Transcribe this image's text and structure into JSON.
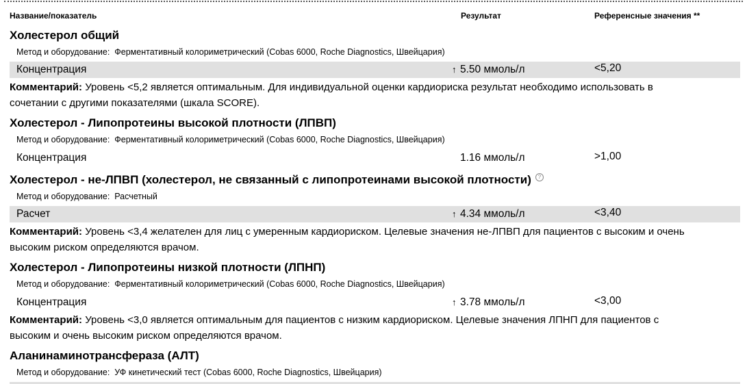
{
  "header": {
    "name": "Название/показатель",
    "result": "Результат",
    "reference": "Референсные значения **"
  },
  "sections": [
    {
      "title": "Холестерол общий",
      "method_label": "Метод и оборудование:",
      "method": "Ферментативный колориметрический (Cobas 6000, Roche Diagnostics, Швейцария)",
      "row": {
        "label": "Концентрация",
        "arrow": "↑",
        "value": "5.50 ммоль/л",
        "reference": "<5,20"
      },
      "comment_label": "Комментарий:",
      "comment": "Уровень <5,2 является оптимальным. Для индивидуальной оценки кардиориска результат необходимо использовать в сочетании с другими показателями (шкала SCORE)."
    },
    {
      "title": "Холестерол - Липопротеины высокой плотности (ЛПВП)",
      "method_label": "Метод и оборудование:",
      "method": "Ферментативный колориметрический (Cobas 6000, Roche Diagnostics, Швейцария)",
      "row": {
        "label": "Концентрация",
        "arrow": "",
        "value": "1.16 ммоль/л",
        "reference": ">1,00"
      }
    },
    {
      "title": "Холестерол - не-ЛПВП (холестерол, не связанный с липопротеинами высокой плотности)",
      "method_label": "Метод и оборудование:",
      "method": "Расчетный",
      "row": {
        "label": "Расчет",
        "arrow": "↑",
        "value": "4.34 ммоль/л",
        "reference": "<3,40"
      },
      "comment_label": "Комментарий:",
      "comment": "Уровень <3,4 желателен для лиц с  умеренным кардиориском. Целевые значения не-ЛПВП для пациентов с высоким и очень высоким риском определяются врачом."
    },
    {
      "title": "Холестерол - Липопротеины низкой плотности (ЛПНП)",
      "method_label": "Метод и оборудование:",
      "method": "Ферментативный колориметрический (Cobas 6000, Roche Diagnostics, Швейцария)",
      "row": {
        "label": "Концентрация",
        "arrow": "↑",
        "value": "3.78 ммоль/л",
        "reference": "<3,00"
      },
      "comment_label": "Комментарий:",
      "comment": "Уровень <3,0 является оптимальным для пациентов с низким кардиориском. Целевые значения ЛПНП для пациентов с высоким и очень высоким риском определяются врачом."
    },
    {
      "title": "Аланинаминотрансфераза (АЛТ)",
      "method_label": "Метод и оборудование:",
      "method": "УФ кинетический тест (Cobas 6000, Roche Diagnostics, Швейцария)"
    }
  ],
  "colors": {
    "row_highlight": "#e0e0e0"
  }
}
